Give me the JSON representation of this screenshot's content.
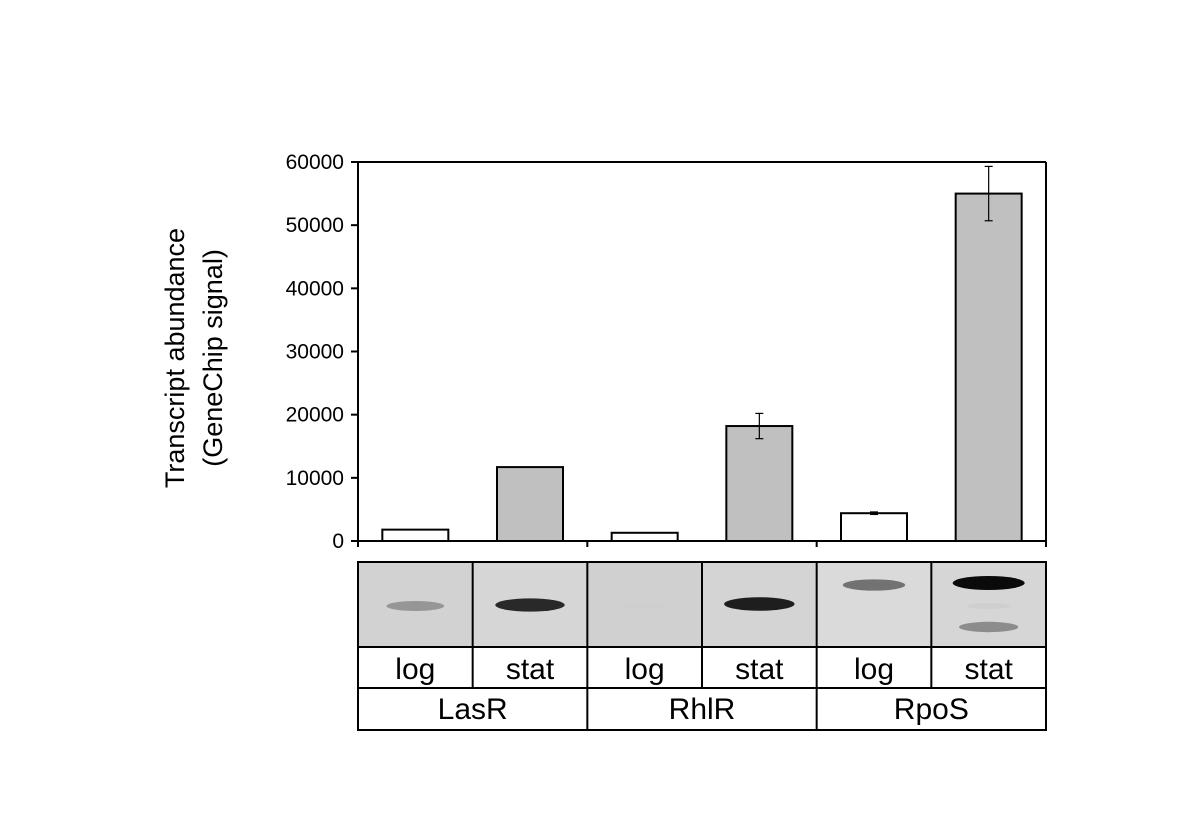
{
  "chart_data": {
    "type": "bar",
    "ylabel_lines": [
      "Transcript abundance",
      "(GeneChip signal)"
    ],
    "ylim": [
      0,
      60000
    ],
    "yticks": [
      0,
      10000,
      20000,
      30000,
      40000,
      50000,
      60000
    ],
    "tick_labels": [
      "0",
      "10000",
      "20000",
      "30000",
      "40000",
      "50000",
      "60000"
    ],
    "groups": [
      "LasR",
      "RhlR",
      "RpoS"
    ],
    "categories": [
      "log",
      "stat",
      "log",
      "stat",
      "log",
      "stat"
    ],
    "values": [
      1800,
      11700,
      1300,
      18200,
      4400,
      55000
    ],
    "errors": [
      null,
      null,
      null,
      2000,
      200,
      4300
    ],
    "bar_colors": [
      "#ffffff",
      "#c0c0c0",
      "#ffffff",
      "#c0c0c0",
      "#ffffff",
      "#c0c0c0"
    ],
    "grid": false,
    "legend": "none"
  },
  "blot_bands": [
    [
      0.55
    ],
    [
      0.92
    ],
    [
      0.05
    ],
    [
      0.95
    ],
    [
      0.7
    ],
    [
      1.0,
      0.12,
      0.6
    ]
  ],
  "blot_background": "#d4d4d4"
}
